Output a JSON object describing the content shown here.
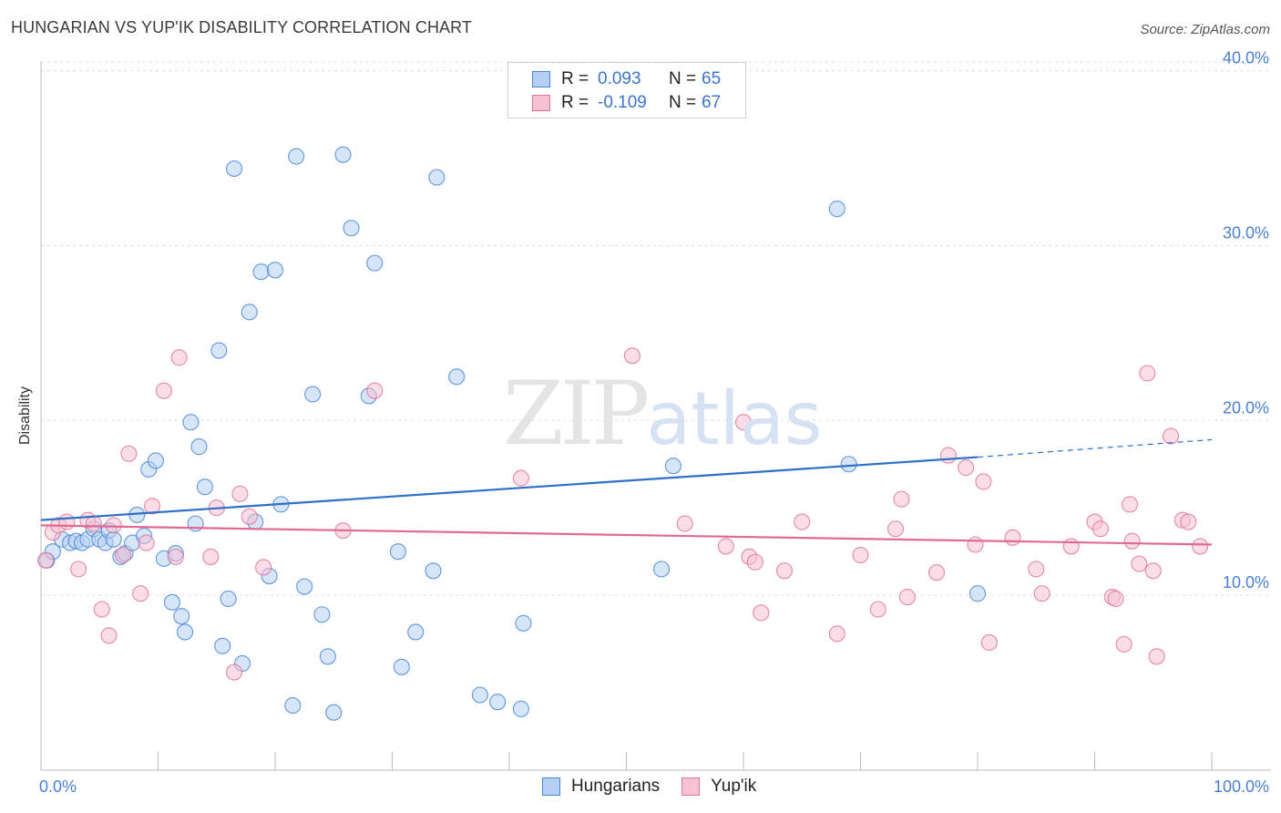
{
  "title": "HUNGARIAN VS YUP'IK DISABILITY CORRELATION CHART",
  "source": "Source: ZipAtlas.com",
  "watermark": {
    "a": "ZIP",
    "b": "atlas"
  },
  "legend": {
    "rows": [
      {
        "r_label": "R =",
        "r_value": "0.093",
        "n_label": "N =",
        "n_value": "65",
        "color": "#aecbf0"
      },
      {
        "r_label": "R =",
        "r_value": "-0.109",
        "n_label": "N =",
        "n_value": "67",
        "color": "#f5b8cc"
      }
    ]
  },
  "bottom_legend": [
    "Hungarians",
    "Yup'ik"
  ],
  "chart_data": {
    "type": "scatter",
    "title": "HUNGARIAN VS YUP'IK DISABILITY CORRELATION CHART",
    "ylabel": "Disability",
    "xlabel": "",
    "xlim": [
      0,
      100
    ],
    "ylim": [
      0,
      40.5
    ],
    "x_tick_labels": [
      "0.0%",
      "100.0%"
    ],
    "y_ticks": [
      10,
      20,
      30,
      40
    ],
    "y_tick_labels": [
      "10.0%",
      "20.0%",
      "30.0%",
      "40.0%"
    ],
    "grid": true,
    "series": [
      {
        "name": "Hungarians",
        "color": "#4a86d8",
        "fill": "#b5d0f2",
        "points": [
          [
            0.5,
            12.0
          ],
          [
            1.0,
            12.5
          ],
          [
            1.8,
            13.2
          ],
          [
            2.5,
            13.0
          ],
          [
            3.0,
            13.1
          ],
          [
            3.5,
            13.0
          ],
          [
            4.0,
            13.2
          ],
          [
            4.5,
            13.8
          ],
          [
            5.0,
            13.2
          ],
          [
            5.5,
            13.0
          ],
          [
            5.8,
            13.7
          ],
          [
            6.2,
            13.2
          ],
          [
            6.8,
            12.2
          ],
          [
            7.2,
            12.4
          ],
          [
            7.8,
            13.0
          ],
          [
            8.2,
            14.6
          ],
          [
            8.8,
            13.4
          ],
          [
            9.2,
            17.2
          ],
          [
            9.8,
            17.7
          ],
          [
            10.5,
            12.1
          ],
          [
            11.2,
            9.6
          ],
          [
            11.5,
            12.4
          ],
          [
            12.0,
            8.8
          ],
          [
            12.3,
            7.9
          ],
          [
            12.8,
            19.9
          ],
          [
            13.2,
            14.1
          ],
          [
            13.5,
            18.5
          ],
          [
            14.0,
            16.2
          ],
          [
            15.2,
            24.0
          ],
          [
            15.5,
            7.1
          ],
          [
            16.0,
            9.8
          ],
          [
            16.5,
            34.4
          ],
          [
            17.2,
            6.1
          ],
          [
            17.8,
            26.2
          ],
          [
            18.3,
            14.2
          ],
          [
            18.8,
            28.5
          ],
          [
            19.5,
            11.1
          ],
          [
            20.0,
            28.6
          ],
          [
            20.5,
            15.2
          ],
          [
            21.5,
            3.7
          ],
          [
            21.8,
            35.1
          ],
          [
            22.5,
            10.5
          ],
          [
            23.2,
            21.5
          ],
          [
            24.0,
            8.9
          ],
          [
            24.5,
            6.5
          ],
          [
            25.0,
            3.3
          ],
          [
            25.8,
            35.2
          ],
          [
            26.5,
            31.0
          ],
          [
            28.0,
            21.4
          ],
          [
            28.5,
            29.0
          ],
          [
            30.5,
            12.5
          ],
          [
            30.8,
            5.9
          ],
          [
            32.0,
            7.9
          ],
          [
            33.5,
            11.4
          ],
          [
            33.8,
            33.9
          ],
          [
            35.5,
            22.5
          ],
          [
            37.5,
            4.3
          ],
          [
            39.0,
            3.9
          ],
          [
            41.0,
            3.5
          ],
          [
            41.2,
            8.4
          ],
          [
            53.0,
            11.5
          ],
          [
            54.0,
            17.4
          ],
          [
            68.0,
            32.1
          ],
          [
            69.0,
            17.5
          ],
          [
            80.0,
            10.1
          ]
        ]
      },
      {
        "name": "Yup'ik",
        "color": "#e0759a",
        "fill": "#f6c1d3",
        "points": [
          [
            0.4,
            12.0
          ],
          [
            1.0,
            13.6
          ],
          [
            1.5,
            14.0
          ],
          [
            2.2,
            14.2
          ],
          [
            3.2,
            11.5
          ],
          [
            4.0,
            14.3
          ],
          [
            4.5,
            14.1
          ],
          [
            5.2,
            9.2
          ],
          [
            5.8,
            7.7
          ],
          [
            6.2,
            14.0
          ],
          [
            7.0,
            12.3
          ],
          [
            7.5,
            18.1
          ],
          [
            8.5,
            10.1
          ],
          [
            9.0,
            13.0
          ],
          [
            9.5,
            15.1
          ],
          [
            10.5,
            21.7
          ],
          [
            11.5,
            12.2
          ],
          [
            11.8,
            23.6
          ],
          [
            14.5,
            12.2
          ],
          [
            15.0,
            15.0
          ],
          [
            16.5,
            5.6
          ],
          [
            17.0,
            15.8
          ],
          [
            17.8,
            14.5
          ],
          [
            19.0,
            11.6
          ],
          [
            25.8,
            13.7
          ],
          [
            28.5,
            21.7
          ],
          [
            41.0,
            16.7
          ],
          [
            50.5,
            23.7
          ],
          [
            55.0,
            14.1
          ],
          [
            58.5,
            12.8
          ],
          [
            60.0,
            19.9
          ],
          [
            60.5,
            12.2
          ],
          [
            61.0,
            11.9
          ],
          [
            61.5,
            9.0
          ],
          [
            63.5,
            11.4
          ],
          [
            65.0,
            14.2
          ],
          [
            68.0,
            7.8
          ],
          [
            70.0,
            12.3
          ],
          [
            71.5,
            9.2
          ],
          [
            73.0,
            13.8
          ],
          [
            73.5,
            15.5
          ],
          [
            74.0,
            9.9
          ],
          [
            76.5,
            11.3
          ],
          [
            77.5,
            18.0
          ],
          [
            79.0,
            17.3
          ],
          [
            79.8,
            12.9
          ],
          [
            80.5,
            16.5
          ],
          [
            81.0,
            7.3
          ],
          [
            83.0,
            13.3
          ],
          [
            85.0,
            11.5
          ],
          [
            85.5,
            10.1
          ],
          [
            88.0,
            12.8
          ],
          [
            90.0,
            14.2
          ],
          [
            90.5,
            13.8
          ],
          [
            91.5,
            9.9
          ],
          [
            91.8,
            9.8
          ],
          [
            92.5,
            7.2
          ],
          [
            93.0,
            15.2
          ],
          [
            93.2,
            13.1
          ],
          [
            93.8,
            11.8
          ],
          [
            94.5,
            22.7
          ],
          [
            95.0,
            11.4
          ],
          [
            95.3,
            6.5
          ],
          [
            96.5,
            19.1
          ],
          [
            97.5,
            14.3
          ],
          [
            98.0,
            14.2
          ],
          [
            99.0,
            12.8
          ]
        ]
      }
    ],
    "trend_lines": [
      {
        "series": "Hungarians",
        "x": [
          0,
          80
        ],
        "y": [
          14.3,
          17.9
        ],
        "dashed_extension_to": [
          100,
          18.9
        ]
      },
      {
        "series": "Yup'ik",
        "x": [
          0,
          100
        ],
        "y": [
          14.0,
          12.9
        ]
      }
    ]
  }
}
